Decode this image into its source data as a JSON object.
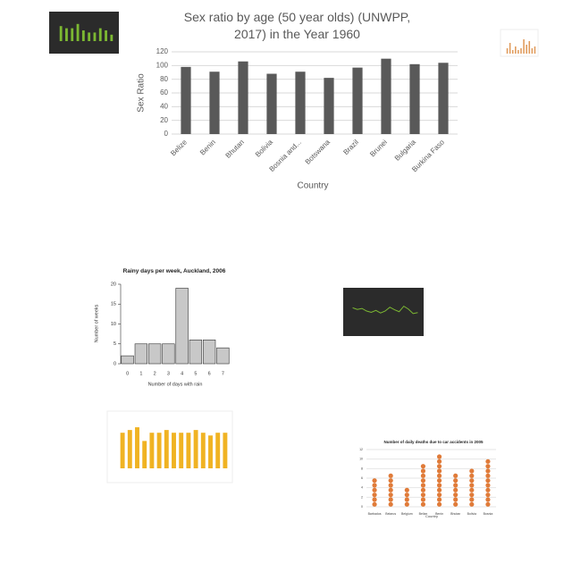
{
  "chart_data": [
    {
      "type": "bar",
      "title": "Sex ratio by age (50 year olds) (UNWPP, 2017) in the Year 1960",
      "categories": [
        "Belize",
        "Benin",
        "Bhutan",
        "Bolivia",
        "Bosnia and...",
        "Botswana",
        "Brazil",
        "Brunei",
        "Bulgaria",
        "Burkina Faso"
      ],
      "values": [
        98,
        91,
        106,
        88,
        91,
        82,
        97,
        110,
        102,
        104
      ],
      "color": "#595959",
      "ylabel": "Sex Ratio",
      "xlabel": "Country",
      "ylim": [
        0,
        120
      ],
      "yticks": [
        0,
        20,
        40,
        60,
        80,
        100,
        120
      ],
      "grid": true
    },
    {
      "type": "bar",
      "title": "Rainy days per week, Auckland, 2006",
      "categories": [
        "0",
        "1",
        "2",
        "3",
        "4",
        "5",
        "6",
        "7"
      ],
      "values": [
        2,
        5,
        5,
        5,
        19,
        6,
        6,
        4
      ],
      "color": "#c8c8c8",
      "ylabel": "Number of weeks",
      "xlabel": "Number of days with rain",
      "ylim": [
        0,
        20
      ],
      "yticks": [
        0,
        5,
        10,
        15,
        20
      ],
      "grid": false
    },
    {
      "type": "dot",
      "title": "Number of daily deaths due to car accidents in 2005",
      "categories": [
        "Barbados",
        "Belarus",
        "Belgium",
        "Belize",
        "Benin",
        "Bhutan",
        "Bolivia",
        "Bosnia"
      ],
      "values": [
        6,
        7,
        4,
        9,
        11,
        7,
        8,
        10
      ],
      "color": "#e07b39",
      "xlabel": "Country",
      "ylim": [
        0,
        12
      ],
      "yticks": [
        0,
        2,
        4,
        6,
        8,
        10,
        12
      ],
      "grid": true
    },
    {
      "type": "bar",
      "values": [
        13,
        14,
        15,
        10,
        13,
        13,
        14,
        13,
        13,
        13,
        14,
        13,
        12,
        13,
        13
      ],
      "color": "#f0b323",
      "ylim": [
        0,
        16
      ],
      "grid": true
    },
    {
      "type": "bar",
      "values": [
        7,
        6,
        6,
        8,
        5,
        4,
        4,
        6,
        5,
        3
      ],
      "color": "#7cb832",
      "ylim": [
        0,
        10
      ],
      "grid": false
    },
    {
      "type": "bar",
      "values": [
        3,
        6,
        2,
        4,
        2,
        3,
        8,
        5,
        7,
        3,
        4
      ],
      "color": "#e09a5a",
      "ylim": [
        0,
        10
      ],
      "grid": false
    },
    {
      "type": "line",
      "values": [
        6,
        5.5,
        5.8,
        5,
        4.6,
        5.2,
        4.4,
        5,
        6.2,
        5.4,
        4.8,
        6.5,
        5.6,
        4.2,
        4.5
      ],
      "color": "#7cb832",
      "ylim": [
        0,
        10
      ],
      "grid": false
    }
  ]
}
